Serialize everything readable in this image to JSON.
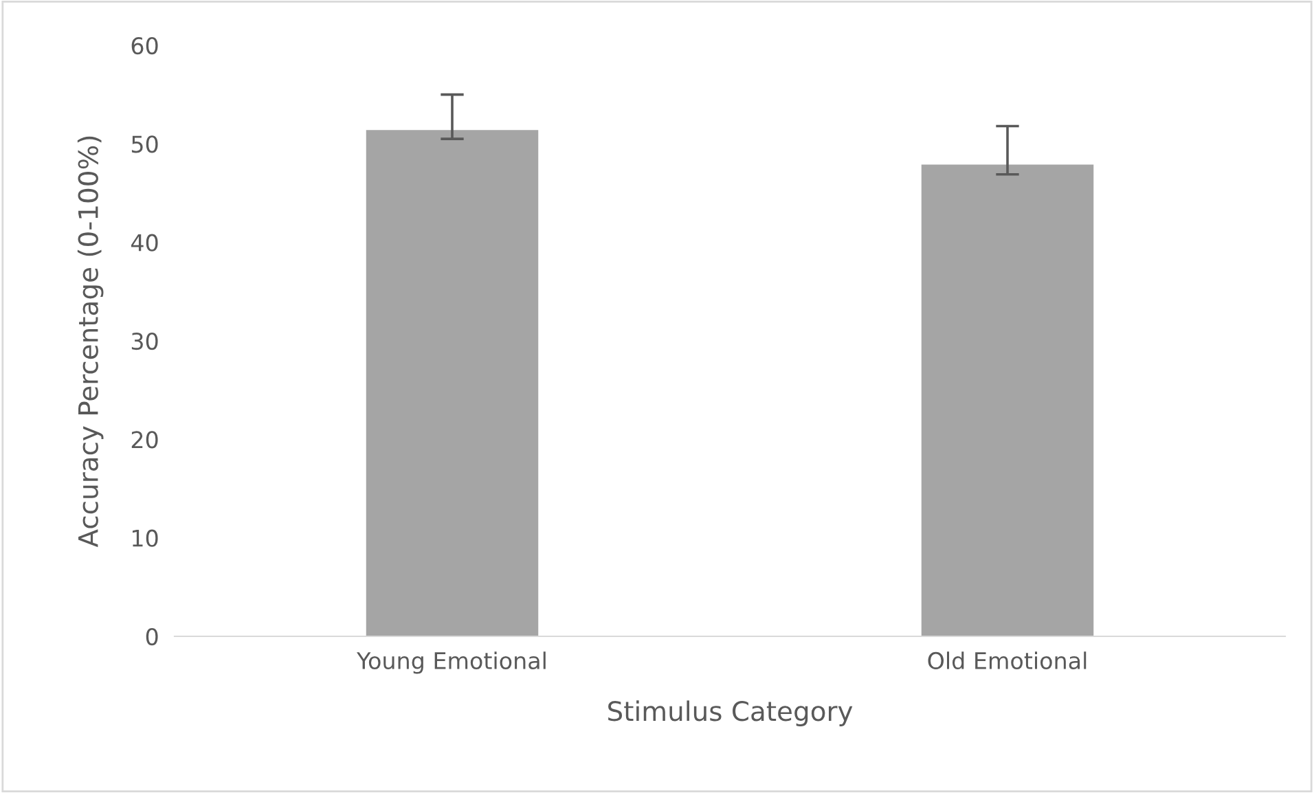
{
  "chart_data": {
    "type": "bar",
    "xlabel": "Stimulus Category",
    "ylabel": "Accuracy Percentage (0-100%)",
    "categories": [
      "Young Emotional",
      "Old Emotional"
    ],
    "values": [
      51.4,
      47.9
    ],
    "errors": [
      [
        50.5,
        55.0
      ],
      [
        46.9,
        51.8
      ]
    ],
    "color": "#a5a5a5",
    "ylim": [
      0,
      60
    ],
    "yticks": [
      0,
      10,
      20,
      30,
      40,
      50,
      60
    ],
    "grid": false,
    "legend": false
  }
}
